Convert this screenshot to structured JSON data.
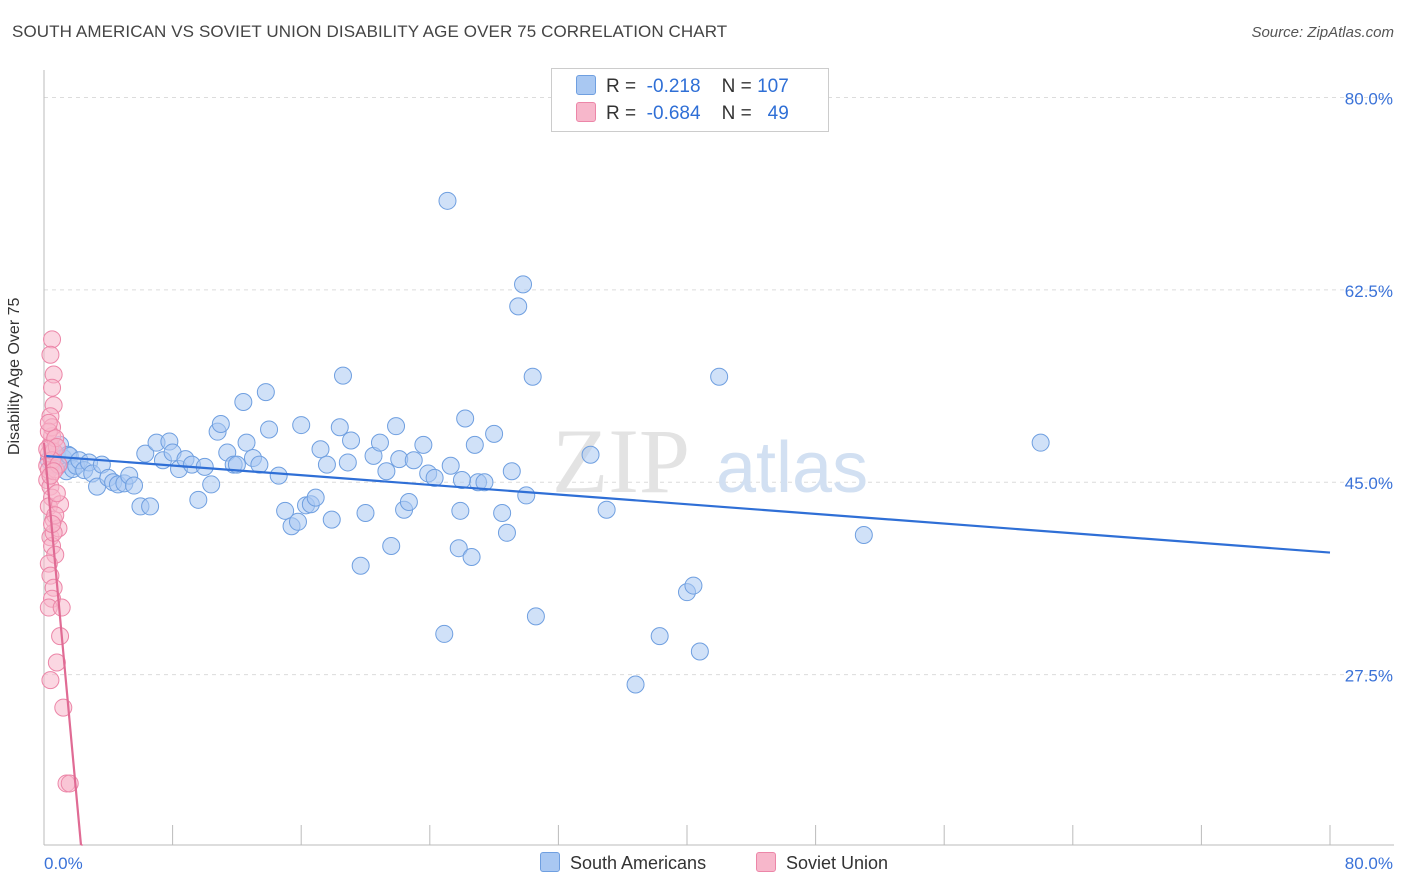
{
  "title": "SOUTH AMERICAN VS SOVIET UNION DISABILITY AGE OVER 75 CORRELATION CHART",
  "source": "Source: ZipAtlas.com",
  "watermark": {
    "zip": "ZIP",
    "atlas": "atlas"
  },
  "legend": {
    "rows": [
      {
        "r_label": "R =",
        "r_value": "-0.218",
        "n_label": "N =",
        "n_value": "107",
        "color": "#a9c8f2"
      },
      {
        "r_label": "R =",
        "r_value": "-0.684",
        "n_label": "N =",
        "n_value": "49",
        "color": "#f7b7cb"
      }
    ]
  },
  "bottom_legend": [
    {
      "label": "South Americans",
      "color": "#a9c8f2"
    },
    {
      "label": "Soviet Union",
      "color": "#f7b7cb"
    }
  ],
  "chart_data": {
    "type": "scatter",
    "title": "SOUTH AMERICAN VS SOVIET UNION DISABILITY AGE OVER 75 CORRELATION CHART",
    "xlabel": "",
    "ylabel": "Disability Age Over 75",
    "xlim": [
      0,
      80
    ],
    "ylim": [
      12,
      82.5
    ],
    "x_tick_labels": [
      "0.0%",
      "80.0%"
    ],
    "y_ticks": [
      27.5,
      45.0,
      62.5,
      80.0
    ],
    "y_tick_labels": [
      "27.5%",
      "45.0%",
      "62.5%",
      "80.0%"
    ],
    "grid": true,
    "legend_position": "top-center",
    "series": [
      {
        "name": "South Americans",
        "color": "#a9c8f2",
        "stroke": "#6f9fe0",
        "trend": {
          "x": [
            0,
            80
          ],
          "y": [
            47.4,
            38.6
          ],
          "color": "#2f6fd6"
        },
        "points": [
          [
            0.3,
            47.0
          ],
          [
            0.5,
            47.8
          ],
          [
            0.6,
            46.8
          ],
          [
            0.8,
            47.5
          ],
          [
            0.9,
            46.5
          ],
          [
            1.0,
            48.4
          ],
          [
            1.2,
            47.2
          ],
          [
            1.4,
            46.0
          ],
          [
            1.5,
            47.5
          ],
          [
            1.6,
            47.4
          ],
          [
            1.8,
            46.2
          ],
          [
            2.0,
            46.5
          ],
          [
            2.2,
            47.0
          ],
          [
            2.5,
            46.1
          ],
          [
            2.8,
            46.8
          ],
          [
            3.0,
            45.8
          ],
          [
            3.3,
            44.6
          ],
          [
            3.6,
            46.6
          ],
          [
            4.0,
            45.4
          ],
          [
            4.3,
            45.0
          ],
          [
            4.6,
            44.8
          ],
          [
            5.0,
            44.9
          ],
          [
            5.3,
            45.6
          ],
          [
            5.6,
            44.7
          ],
          [
            6.0,
            42.8
          ],
          [
            6.3,
            47.6
          ],
          [
            6.6,
            42.8
          ],
          [
            7.0,
            48.6
          ],
          [
            7.4,
            47.0
          ],
          [
            7.8,
            48.7
          ],
          [
            8.0,
            47.7
          ],
          [
            8.4,
            46.2
          ],
          [
            8.8,
            47.1
          ],
          [
            9.2,
            46.6
          ],
          [
            9.6,
            43.4
          ],
          [
            10.0,
            46.4
          ],
          [
            10.4,
            44.8
          ],
          [
            10.8,
            49.6
          ],
          [
            11.0,
            50.3
          ],
          [
            11.4,
            47.7
          ],
          [
            11.8,
            46.6
          ],
          [
            12.0,
            46.6
          ],
          [
            12.4,
            52.3
          ],
          [
            12.6,
            48.6
          ],
          [
            13.0,
            47.2
          ],
          [
            13.4,
            46.6
          ],
          [
            13.8,
            53.2
          ],
          [
            14.0,
            49.8
          ],
          [
            14.6,
            45.6
          ],
          [
            15.0,
            42.4
          ],
          [
            15.4,
            41.0
          ],
          [
            15.8,
            41.4
          ],
          [
            16.0,
            50.2
          ],
          [
            16.3,
            42.9
          ],
          [
            16.6,
            43.0
          ],
          [
            16.9,
            43.6
          ],
          [
            17.2,
            48.0
          ],
          [
            17.6,
            46.6
          ],
          [
            17.9,
            41.6
          ],
          [
            18.4,
            50.0
          ],
          [
            18.6,
            54.7
          ],
          [
            18.9,
            46.8
          ],
          [
            19.1,
            48.8
          ],
          [
            19.7,
            37.4
          ],
          [
            20.0,
            42.2
          ],
          [
            20.5,
            47.4
          ],
          [
            20.9,
            48.6
          ],
          [
            21.3,
            46.0
          ],
          [
            21.6,
            39.2
          ],
          [
            21.9,
            50.1
          ],
          [
            22.1,
            47.1
          ],
          [
            22.4,
            42.5
          ],
          [
            22.7,
            43.2
          ],
          [
            23.0,
            47.0
          ],
          [
            23.6,
            48.4
          ],
          [
            23.9,
            45.8
          ],
          [
            24.3,
            45.4
          ],
          [
            24.9,
            31.2
          ],
          [
            25.1,
            70.6
          ],
          [
            25.3,
            46.5
          ],
          [
            25.9,
            42.4
          ],
          [
            25.8,
            39.0
          ],
          [
            26.2,
            50.8
          ],
          [
            26.6,
            38.2
          ],
          [
            26.8,
            48.4
          ],
          [
            27.0,
            45.0
          ],
          [
            27.4,
            45.0
          ],
          [
            28.0,
            49.4
          ],
          [
            28.5,
            42.2
          ],
          [
            28.8,
            40.4
          ],
          [
            29.1,
            46.0
          ],
          [
            29.5,
            61.0
          ],
          [
            30.4,
            54.6
          ],
          [
            30.6,
            32.8
          ],
          [
            29.8,
            63.0
          ],
          [
            26.0,
            45.2
          ],
          [
            34.0,
            47.5
          ],
          [
            35.0,
            42.5
          ],
          [
            36.8,
            26.6
          ],
          [
            38.3,
            31.0
          ],
          [
            40.0,
            35.0
          ],
          [
            40.4,
            35.6
          ],
          [
            40.8,
            29.6
          ],
          [
            42.0,
            54.6
          ],
          [
            51.0,
            40.2
          ],
          [
            62.0,
            48.6
          ],
          [
            30.0,
            43.8
          ]
        ]
      },
      {
        "name": "Soviet Union",
        "color": "#f7b7cb",
        "stroke": "#ec86a8",
        "trend": {
          "x": [
            0,
            2.3
          ],
          "y": [
            48.6,
            12.0
          ],
          "color": "#e06b94"
        },
        "points": [
          [
            0.2,
            46.5
          ],
          [
            0.3,
            47.6
          ],
          [
            0.2,
            45.2
          ],
          [
            0.4,
            48.4
          ],
          [
            0.5,
            49.2
          ],
          [
            0.3,
            46.1
          ],
          [
            0.6,
            47.8
          ],
          [
            0.4,
            44.6
          ],
          [
            0.5,
            43.6
          ],
          [
            0.7,
            46.2
          ],
          [
            0.3,
            42.8
          ],
          [
            0.6,
            41.6
          ],
          [
            0.4,
            40.0
          ],
          [
            0.5,
            39.2
          ],
          [
            0.7,
            38.4
          ],
          [
            0.3,
            37.6
          ],
          [
            0.4,
            36.5
          ],
          [
            0.6,
            35.4
          ],
          [
            0.5,
            34.4
          ],
          [
            0.3,
            33.6
          ],
          [
            0.4,
            27.0
          ],
          [
            0.8,
            28.6
          ],
          [
            1.0,
            31.0
          ],
          [
            1.2,
            24.5
          ],
          [
            1.4,
            17.6
          ],
          [
            1.6,
            17.6
          ],
          [
            0.5,
            58.0
          ],
          [
            0.4,
            56.6
          ],
          [
            0.6,
            54.8
          ],
          [
            0.5,
            53.6
          ],
          [
            0.6,
            52.0
          ],
          [
            0.4,
            51.0
          ],
          [
            0.5,
            50.0
          ],
          [
            0.3,
            49.6
          ],
          [
            0.7,
            49.0
          ],
          [
            0.8,
            48.2
          ],
          [
            0.5,
            47.0
          ],
          [
            0.9,
            46.6
          ],
          [
            0.6,
            46.0
          ],
          [
            0.4,
            45.6
          ],
          [
            1.0,
            43.0
          ],
          [
            0.8,
            44.0
          ],
          [
            0.9,
            40.8
          ],
          [
            0.6,
            40.4
          ],
          [
            0.7,
            42.0
          ],
          [
            0.5,
            41.2
          ],
          [
            1.1,
            33.6
          ],
          [
            0.2,
            48.0
          ],
          [
            0.3,
            50.4
          ]
        ]
      }
    ]
  }
}
